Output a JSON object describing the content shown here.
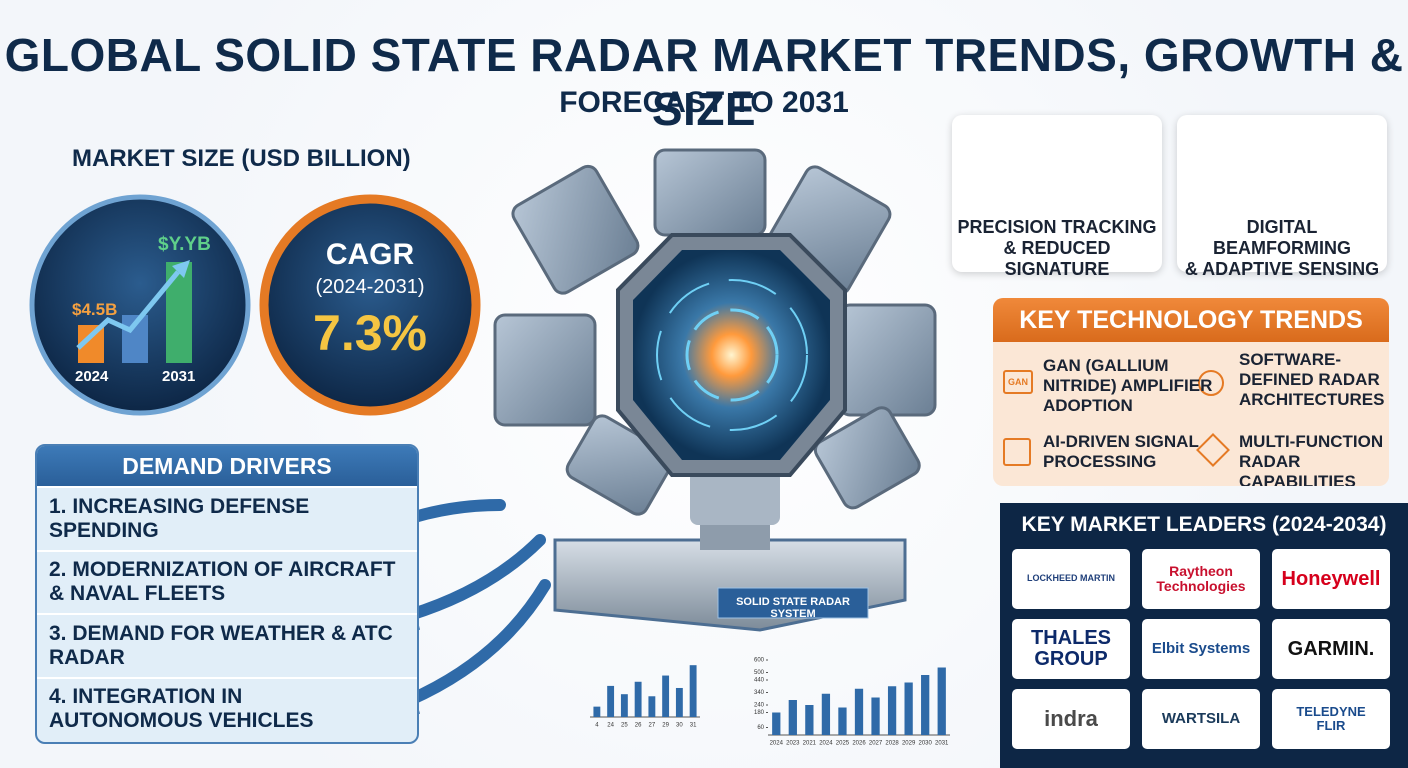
{
  "header": {
    "title": "GLOBAL SOLID STATE RADAR MARKET TRENDS, GROWTH & SIZE",
    "subtitle": "FORECAST TO 2031"
  },
  "market_size": {
    "title": "MARKET SIZE (USD BILLION)",
    "start_label": "$4.5B",
    "end_label": "$Y.YB",
    "start_year": "2024",
    "end_year": "2031"
  },
  "cagr": {
    "title": "CAGR",
    "period": "(2024-2031)",
    "value": "7.3%"
  },
  "demand_drivers": {
    "title": "DEMAND DRIVERS",
    "items": [
      [
        "1. INCREASING DEFENSE SPENDING"
      ],
      [
        "2. MODERNIZATION OF AIRCRAFT",
        "& NAVAL FLEETS"
      ],
      [
        "3. DEMAND FOR WEATHER & ATC",
        "RADAR"
      ],
      [
        "4. INTEGRATION IN",
        "AUTONOMOUS VEHICLES"
      ]
    ]
  },
  "radar_label": "SOLID STATE RADAR SYSTEM",
  "features": [
    [
      "PRECISION TRACKING",
      "& REDUCED SIGNATURE"
    ],
    [
      "DIGITAL BEAMFORMING",
      "& ADAPTIVE SENSING"
    ]
  ],
  "key_technology_trends": {
    "title": "KEY TECHNOLOGY TRENDS",
    "icon_label": "GAN",
    "items": [
      [
        "GAN (GALLIUM",
        "NITRIDE) AMPLIFIER",
        "ADOPTION"
      ],
      [
        "SOFTWARE-",
        "DEFINED RADAR",
        "ARCHITECTURES"
      ],
      [
        "AI-DRIVEN SIGNAL",
        "PROCESSING"
      ],
      [
        "MULTI-FUNCTION",
        "RADAR CAPABILITIES"
      ]
    ]
  },
  "key_market_leaders": {
    "title": "KEY MARKET LEADERS (2024-2034)",
    "logos": [
      [
        "LOCKHEED MARTIN"
      ],
      [
        "Raytheon",
        "Technologies"
      ],
      [
        "Honeywell"
      ],
      [
        "THALES",
        "GROUP"
      ],
      [
        "Elbit Systems"
      ],
      [
        "GARMIN."
      ],
      [
        "indra"
      ],
      [
        "WARTSILA"
      ],
      [
        "TELEDYNE",
        "FLIR"
      ]
    ]
  },
  "mini_charts": [
    {
      "type": "bar",
      "categories": [
        "4",
        "24",
        "25",
        "26",
        "27",
        "29",
        "30",
        "31"
      ],
      "values": [
        10,
        30,
        22,
        34,
        20,
        40,
        28,
        50
      ],
      "ylim": [
        0,
        55
      ]
    },
    {
      "type": "bar",
      "categories": [
        "2024",
        "2023",
        "2021",
        "2024",
        "2025",
        "2026",
        "2027",
        "2028",
        "2029",
        "2030",
        "2031"
      ],
      "values": [
        180,
        280,
        240,
        330,
        220,
        370,
        300,
        390,
        420,
        480,
        540
      ],
      "ylim": [
        0,
        600
      ],
      "yticks": [
        60,
        180,
        240,
        340,
        440,
        500,
        600
      ]
    }
  ]
}
